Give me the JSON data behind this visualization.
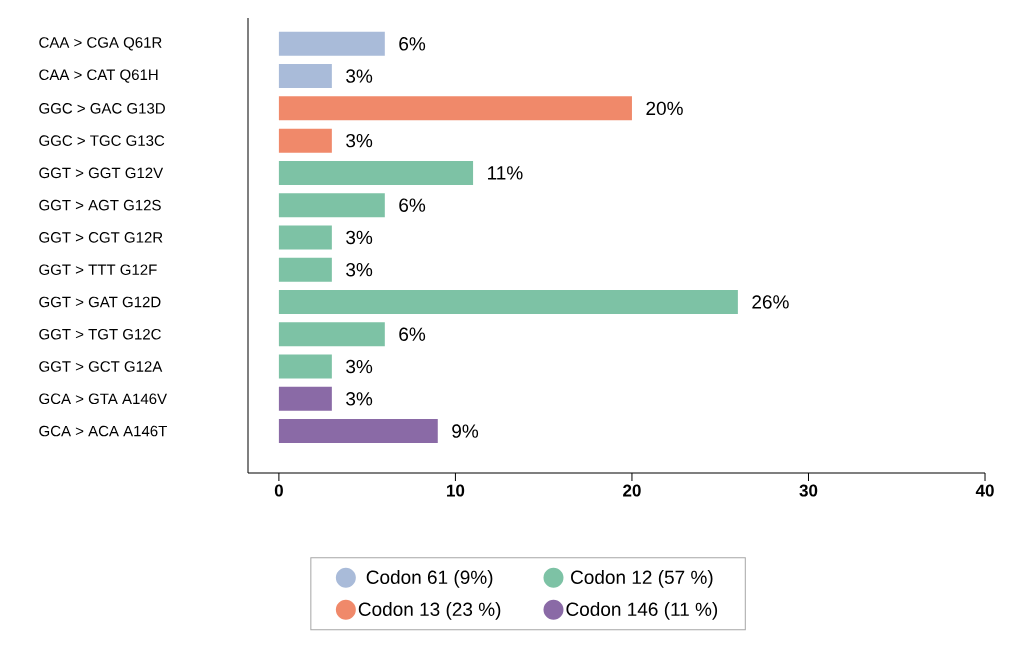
{
  "chart_data": {
    "type": "bar",
    "orientation": "horizontal",
    "categories": [
      "CAA > CGA Q61R",
      "CAA > CAT Q61H",
      "GGC > GAC G13D",
      "GGC > TGC G13C",
      "GGT > GGT G12V",
      "GGT > AGT G12S",
      "GGT > CGT G12R",
      "GGT > TTT G12F",
      "GGT > GAT G12D",
      "GGT > TGT G12C",
      "GGT > GCT G12A",
      "GCA > GTA A146V",
      "GCA > ACA A146T"
    ],
    "series": [
      {
        "name": "Codon 61 (9%)",
        "color": "#a9bbd9",
        "values": [
          6,
          3,
          null,
          null,
          null,
          null,
          null,
          null,
          null,
          null,
          null,
          null,
          null
        ],
        "value_labels": [
          "6%",
          "3%",
          null,
          null,
          null,
          null,
          null,
          null,
          null,
          null,
          null,
          null,
          null
        ]
      },
      {
        "name": "Codon 12 (57 %)",
        "color": "#7dc2a5",
        "values": [
          null,
          null,
          null,
          null,
          11,
          6,
          3,
          3,
          26,
          6,
          3,
          null,
          null
        ],
        "value_labels": [
          null,
          null,
          null,
          null,
          "11%",
          "6%",
          "3%",
          "3%",
          "26%",
          "6%",
          "3%",
          null,
          null
        ]
      },
      {
        "name": "Codon 13 (23 %)",
        "color": "#f0896a",
        "values": [
          null,
          null,
          20,
          3,
          null,
          null,
          null,
          null,
          null,
          null,
          null,
          null,
          null
        ],
        "value_labels": [
          null,
          null,
          "20%",
          "3%",
          null,
          null,
          null,
          null,
          null,
          null,
          null,
          null,
          null
        ]
      },
      {
        "name": "Codon 146 (11 %)",
        "color": "#8a6aa6",
        "values": [
          null,
          null,
          null,
          null,
          null,
          null,
          null,
          null,
          null,
          null,
          null,
          3,
          9
        ],
        "value_labels": [
          null,
          null,
          null,
          null,
          null,
          null,
          null,
          null,
          null,
          null,
          null,
          "3%",
          "9%"
        ]
      }
    ],
    "xlim": [
      -1.75,
      40
    ],
    "xticks": [
      0,
      10,
      20,
      30,
      40
    ],
    "grid": false,
    "legend": "bottom"
  }
}
